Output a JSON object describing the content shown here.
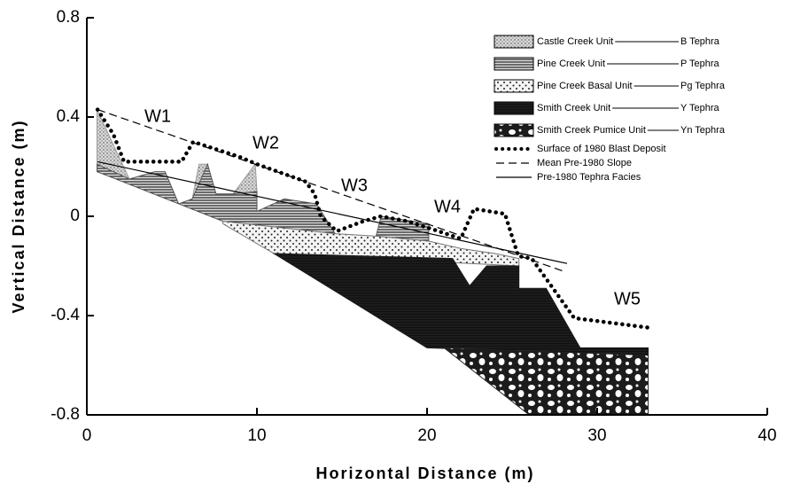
{
  "chart_data": {
    "type": "cross-section",
    "xlabel": "Horizontal Distance (m)",
    "ylabel": "Vertical Distance (m)",
    "xlim": [
      0,
      40
    ],
    "xticks": [
      0,
      10,
      20,
      30,
      40
    ],
    "ylim": [
      -0.8,
      0.8
    ],
    "yticks": [
      -0.8,
      -0.4,
      0,
      0.4,
      0.8
    ],
    "units": [
      {
        "name": "Castle Creek Unit",
        "tephra": "B Tephra",
        "pattern": "stipple",
        "color": "#9a9a9a",
        "x": [
          0.6,
          2.5,
          0.6,
          null,
          6.6,
          7.1,
          6.2,
          null,
          9.9,
          10,
          8.6
        ],
        "y": [
          0.43,
          0.15,
          0.21,
          null,
          0.21,
          0.21,
          0.07,
          null,
          0.21,
          0.1,
          0.09
        ]
      },
      {
        "name": "Pine Creek Unit",
        "tephra": "P Tephra",
        "pattern": "hatch",
        "color": "#555555",
        "x": [
          0.6,
          2.5,
          4,
          4.6,
          5.4,
          6.2,
          7.1,
          7.6,
          8.6,
          10,
          10,
          11.6,
          13.5,
          14.6,
          8,
          0.6,
          null,
          17.3,
          20.1,
          20.1,
          17
        ],
        "y": [
          0.21,
          0.15,
          0.18,
          0.18,
          0.05,
          0.07,
          0.21,
          0.09,
          0.09,
          0.1,
          0.02,
          0.07,
          0.05,
          -0.07,
          -0.02,
          0.18,
          null,
          0.0,
          -0.03,
          -0.1,
          -0.08
        ]
      },
      {
        "name": "Pine Creek Basal Unit",
        "tephra": "Pg Tephra",
        "pattern": "dots",
        "color": "#777777",
        "x": [
          8,
          14.6,
          17,
          20.1,
          22,
          24,
          25.4,
          25.4,
          11,
          8
        ],
        "y": [
          -0.02,
          -0.07,
          -0.08,
          -0.1,
          -0.13,
          -0.15,
          -0.17,
          -0.2,
          -0.15,
          -0.03
        ]
      },
      {
        "name": "Smith Creek Unit",
        "tephra": "Y Tephra",
        "pattern": "solid",
        "color": "#1a1a1a",
        "x": [
          11,
          21.5,
          22.5,
          23.5,
          25.4,
          25.4,
          27,
          29,
          33,
          33,
          20
        ],
        "y": [
          -0.15,
          -0.17,
          -0.28,
          -0.2,
          -0.2,
          -0.29,
          -0.29,
          -0.53,
          -0.53,
          -0.56,
          -0.53
        ]
      },
      {
        "name": "Smith Creek Pumice Unit",
        "tephra": "Yn Tephra",
        "pattern": "pumice",
        "color": "#222222",
        "x": [
          21,
          33,
          33,
          26
        ],
        "y": [
          -0.53,
          -0.56,
          -0.8,
          -0.8
        ]
      }
    ],
    "lines": [
      {
        "name": "Surface of 1980 Blast Deposit",
        "style": "dotted",
        "color": "#000000",
        "x": [
          0.63,
          1.56,
          2.19,
          5.57,
          6.25,
          8.96,
          10.0,
          12.86,
          13.39,
          13.75,
          14.69,
          16.25,
          17.29,
          18.85,
          20.68,
          21.98,
          22.76,
          24.58,
          25.36,
          26.15,
          28.65,
          33.18
        ],
        "y": [
          0.43,
          0.33,
          0.22,
          0.22,
          0.3,
          0.24,
          0.21,
          0.14,
          0.09,
          0.0,
          -0.06,
          -0.02,
          0.0,
          -0.02,
          -0.06,
          -0.09,
          0.03,
          0.01,
          -0.16,
          -0.17,
          -0.41,
          -0.45
        ]
      },
      {
        "name": "Mean Pre-1980 Slope",
        "style": "dashed",
        "color": "#000000",
        "x": [
          0.63,
          27.97
        ],
        "y": [
          0.43,
          -0.22
        ]
      },
      {
        "name": "Pre-1980 Tephra Facies",
        "style": "solid",
        "color": "#000000",
        "x": [
          0.63,
          28.23
        ],
        "y": [
          0.22,
          -0.19
        ]
      }
    ],
    "annotations": [
      "W1",
      "W2",
      "W3",
      "W4",
      "W5"
    ]
  }
}
